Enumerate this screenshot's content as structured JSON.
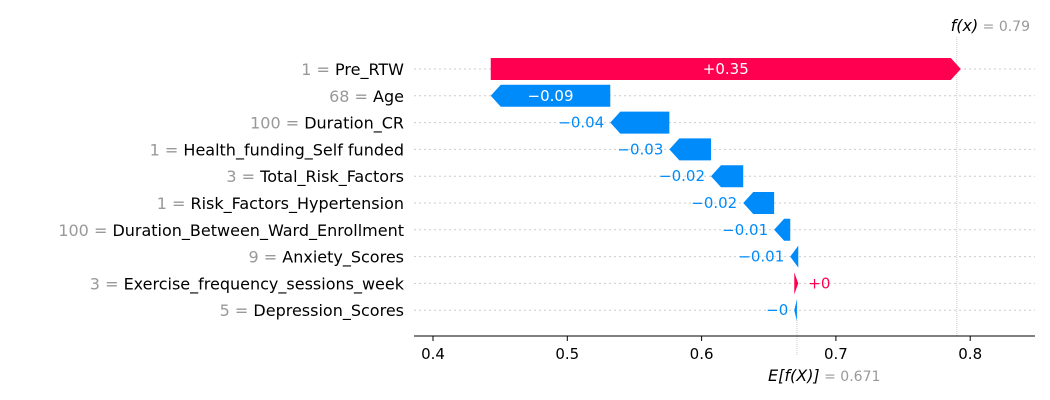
{
  "chart_data": {
    "type": "waterfall",
    "fx": {
      "label_math": "f(x)",
      "equals": " = 0.79",
      "value": 0.79
    },
    "ex": {
      "label_math": "E[f(X)]",
      "equals": " = 0.671",
      "value": 0.671
    },
    "xticks": [
      {
        "value": 0.4,
        "label": "0.4"
      },
      {
        "value": 0.5,
        "label": "0.5"
      },
      {
        "value": 0.6,
        "label": "0.6"
      },
      {
        "value": 0.7,
        "label": "0.7"
      },
      {
        "value": 0.8,
        "label": "0.8"
      }
    ],
    "xlim": [
      0.386,
      0.852
    ],
    "colors": {
      "positive": "#ff0051",
      "negative": "#008bfb",
      "muted": "#999999",
      "axis": "#000000",
      "guide": "#cccccc"
    },
    "features": [
      {
        "value": "1",
        "name": "Pre_RTW",
        "shap": 0.35,
        "label": "+0.35",
        "start": 0.443,
        "end": 0.793
      },
      {
        "value": "68",
        "name": "Age",
        "shap": -0.09,
        "label": "−0.09",
        "start": 0.532,
        "end": 0.443
      },
      {
        "value": "100",
        "name": "Duration_CR",
        "shap": -0.04,
        "label": "−0.04",
        "start": 0.576,
        "end": 0.532
      },
      {
        "value": "1",
        "name": "Health_funding_Self funded",
        "shap": -0.03,
        "label": "−0.03",
        "start": 0.607,
        "end": 0.576
      },
      {
        "value": "3",
        "name": "Total_Risk_Factors",
        "shap": -0.02,
        "label": "−0.02",
        "start": 0.631,
        "end": 0.607
      },
      {
        "value": "1",
        "name": "Risk_Factors_Hypertension",
        "shap": -0.02,
        "label": "−0.02",
        "start": 0.654,
        "end": 0.631
      },
      {
        "value": "100",
        "name": "Duration_Between_Ward_Enrollment",
        "shap": -0.01,
        "label": "−0.01",
        "start": 0.666,
        "end": 0.654
      },
      {
        "value": "9",
        "name": "Anxiety_Scores",
        "shap": -0.01,
        "label": "−0.01",
        "start": 0.672,
        "end": 0.666
      },
      {
        "value": "3",
        "name": "Exercise_frequency_sessions_week",
        "shap": 0.0,
        "label": "+0",
        "start": 0.669,
        "end": 0.672
      },
      {
        "value": "5",
        "name": "Depression_Scores",
        "shap": -0.0,
        "label": "−0",
        "start": 0.671,
        "end": 0.669
      }
    ]
  }
}
